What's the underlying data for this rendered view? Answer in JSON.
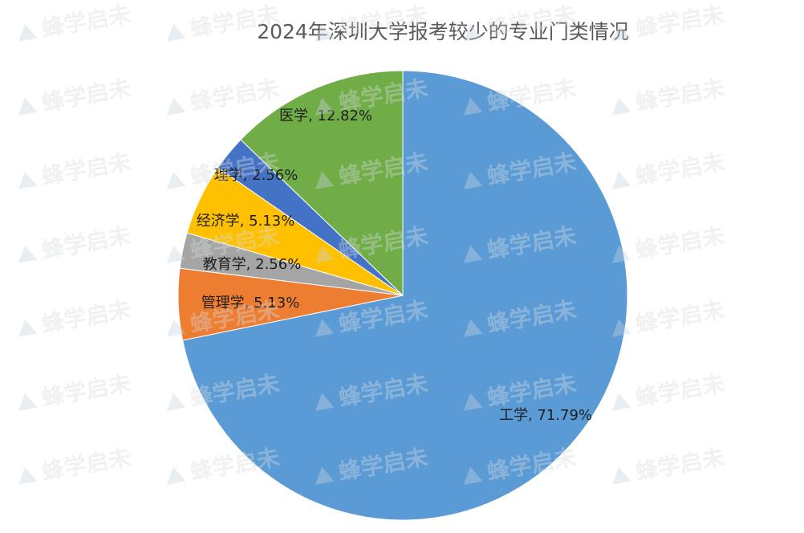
{
  "chart_data": {
    "type": "pie",
    "title": "2024年深圳大学报考较少的专业门类情况",
    "start_angle_deg": 0,
    "direction": "clockwise",
    "slices": [
      {
        "label": "工学, 71.79%",
        "category": "工学",
        "value": 71.79,
        "color": "#5B9BD5"
      },
      {
        "label": "管理学, 5.13%",
        "category": "管理学",
        "value": 5.13,
        "color": "#ED7D31"
      },
      {
        "label": "教育学, 2.56%",
        "category": "教育学",
        "value": 2.56,
        "color": "#A5A5A5"
      },
      {
        "label": "经济学, 5.13%",
        "category": "经济学",
        "value": 5.13,
        "color": "#FFC000"
      },
      {
        "label": "理学, 2.56%",
        "category": "理学",
        "value": 2.56,
        "color": "#4472C4"
      },
      {
        "label": "医学, 12.82%",
        "category": "医学",
        "value": 12.82,
        "color": "#70AD47"
      }
    ]
  },
  "watermark": {
    "text": "蜂学启未"
  }
}
